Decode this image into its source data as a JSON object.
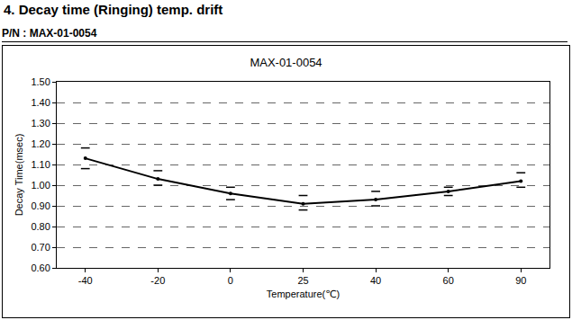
{
  "chart_data": {
    "type": "line",
    "title": "MAX-01-0054",
    "annotations": [
      "4. Decay time (Ringing) temp. drift",
      "P/N : MAX-01-0054"
    ],
    "x_label": "Temperature(℃)",
    "y_label": "Decay Time(msec)",
    "categories": [
      "-40",
      "-20",
      "0",
      "25",
      "40",
      "60",
      "90"
    ],
    "values": [
      1.13,
      1.03,
      0.96,
      0.91,
      0.93,
      0.97,
      1.02
    ],
    "max": [
      1.18,
      1.07,
      0.99,
      0.95,
      0.97,
      0.99,
      1.06
    ],
    "min": [
      1.08,
      1.0,
      0.93,
      0.88,
      0.9,
      0.95,
      0.99
    ],
    "color": "#000000",
    "marker": "circle",
    "line_style": "solid",
    "ylim": [
      0.6,
      1.5
    ],
    "yticks": [
      {
        "value": 0.6,
        "label": "0.60"
      },
      {
        "value": 0.7,
        "label": "0.70"
      },
      {
        "value": 0.8,
        "label": "0.80"
      },
      {
        "value": 0.9,
        "label": "0.90"
      },
      {
        "value": 1.0,
        "label": "1.00"
      },
      {
        "value": 1.1,
        "label": "1.10"
      },
      {
        "value": 1.2,
        "label": "1.20"
      },
      {
        "value": 1.3,
        "label": "1.30"
      },
      {
        "value": 1.4,
        "label": "1.40"
      },
      {
        "value": 1.5,
        "label": "1.50"
      }
    ],
    "grid": true
  }
}
